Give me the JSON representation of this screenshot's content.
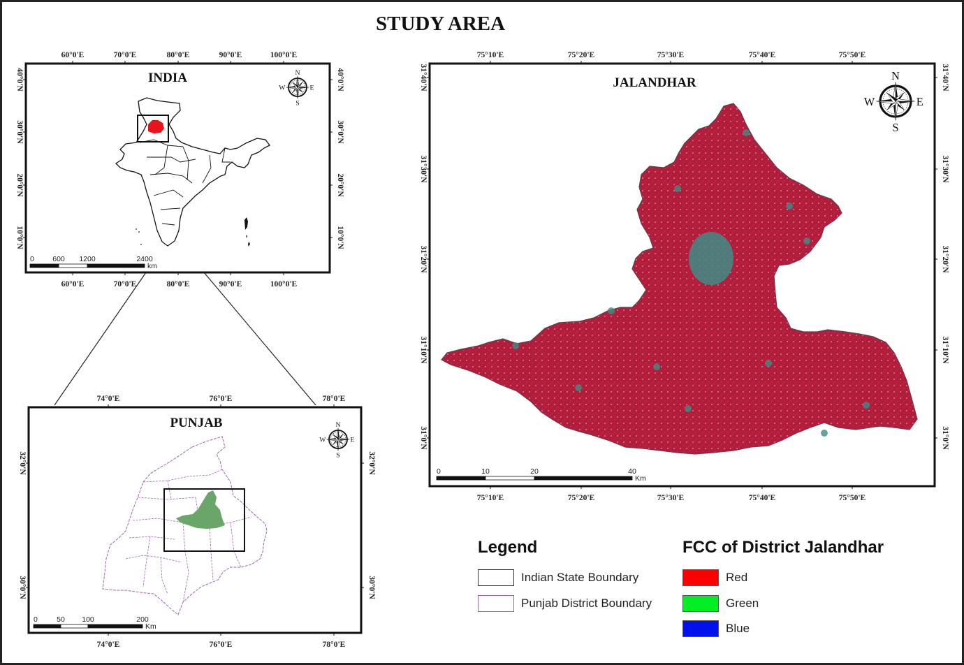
{
  "title": "STUDY AREA",
  "india_map": {
    "title": "INDIA",
    "top_ticks": [
      "60°0'E",
      "70°0'E",
      "80°0'E",
      "90°0'E",
      "100°0'E"
    ],
    "bottom_ticks": [
      "60°0'E",
      "70°0'E",
      "80°0'E",
      "90°0'E",
      "100°0'E"
    ],
    "left_ticks": [
      "40°0'N",
      "30°0'N",
      "20°0'N",
      "10°0'N"
    ],
    "right_ticks": [
      "40°0'N",
      "30°0'N",
      "20°0'N",
      "10°0'N"
    ],
    "scale_labels": [
      "0",
      "600",
      "1200",
      "2400"
    ],
    "scale_unit": "km",
    "compass": {
      "n": "N",
      "s": "S",
      "e": "E",
      "w": "W"
    },
    "highlight_color": "#e8141b"
  },
  "punjab_map": {
    "title": "PUNJAB",
    "top_ticks": [
      "74°0'E",
      "76°0'E",
      "78°0'E"
    ],
    "bottom_ticks": [
      "74°0'E",
      "76°0'E",
      "78°0'E"
    ],
    "left_ticks": [
      "32°0'N",
      "30°0'N"
    ],
    "right_ticks": [
      "32°0'N",
      "30°0'N"
    ],
    "scale_labels": [
      "0",
      "50",
      "100",
      "200"
    ],
    "scale_unit": "Km",
    "compass": {
      "n": "N",
      "s": "S",
      "e": "E",
      "w": "W"
    },
    "highlight_color": "#6aa56a",
    "boundary_color": "#9a6aa8"
  },
  "jalandhar_map": {
    "title": "JALANDHAR",
    "top_ticks": [
      "75°10'E",
      "75°20'E",
      "75°30'E",
      "75°40'E",
      "75°50'E"
    ],
    "bottom_ticks": [
      "75°10'E",
      "75°20'E",
      "75°30'E",
      "75°40'E",
      "75°50'E"
    ],
    "left_ticks": [
      "31°40'N",
      "31°30'N",
      "31°20'N",
      "31°10'N",
      "31°0'N"
    ],
    "right_ticks": [
      "31°40'N",
      "31°30'N",
      "31°20'N",
      "31°10'N",
      "31°0'N"
    ],
    "scale_labels": [
      "0",
      "10",
      "20",
      "40"
    ],
    "scale_unit": "Km",
    "compass": {
      "n": "N",
      "s": "S",
      "e": "E",
      "w": "W"
    },
    "fill_color": "#b01a3a",
    "urban_color": "#3f8c86"
  },
  "legend": {
    "title": "Legend",
    "items": [
      {
        "label": "Indian State Boundary",
        "border": "#333333"
      },
      {
        "label": "Punjab District Boundary",
        "border": "#9a6aa8"
      }
    ]
  },
  "fcc_legend": {
    "title": "FCC of District Jalandhar",
    "items": [
      {
        "label": "Red",
        "color": "#ff0000"
      },
      {
        "label": "Green",
        "color": "#00ee22"
      },
      {
        "label": "Blue",
        "color": "#0011ee"
      }
    ]
  }
}
